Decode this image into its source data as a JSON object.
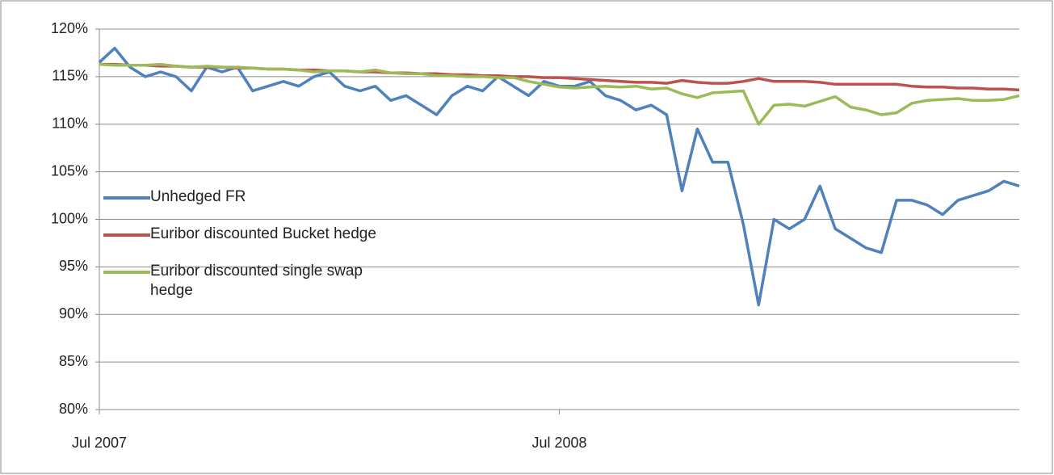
{
  "chart_data": {
    "type": "line",
    "categories": [
      "Jul 2007",
      null,
      null,
      null,
      null,
      null,
      null,
      null,
      null,
      null,
      null,
      null,
      null,
      null,
      null,
      null,
      null,
      null,
      null,
      null,
      null,
      null,
      null,
      null,
      null,
      null,
      null,
      null,
      null,
      null,
      "Jul 2008",
      null,
      null,
      null,
      null,
      null,
      null,
      null,
      null,
      null,
      null,
      null,
      null,
      null,
      null,
      null,
      null,
      null,
      null,
      null,
      null,
      null,
      null,
      null,
      null,
      null,
      null,
      null,
      null,
      null,
      null
    ],
    "series": [
      {
        "name": "Unhedged FR",
        "color": "#4f81bd",
        "values": [
          116.5,
          118,
          116,
          115,
          115.5,
          115,
          113.5,
          116,
          115.5,
          116,
          113.5,
          114,
          114.5,
          114,
          115,
          115.5,
          114,
          113.5,
          114,
          112.5,
          113,
          112,
          111,
          113,
          114,
          113.5,
          115,
          114,
          113,
          114.5,
          114,
          114,
          114.5,
          113,
          112.5,
          111.5,
          112,
          111,
          103,
          109.5,
          106,
          106,
          99.5,
          91,
          100,
          99,
          100,
          103.5,
          99,
          98,
          97,
          96.5,
          102,
          102,
          101.5,
          100.5,
          102,
          102.5,
          103,
          104,
          103.5
        ]
      },
      {
        "name": "Euribor discounted Bucket hedge",
        "color": "#c0504d",
        "values": [
          116.3,
          116.3,
          116.2,
          116.2,
          116.1,
          116.1,
          116.0,
          116.0,
          116.0,
          115.9,
          115.9,
          115.8,
          115.8,
          115.7,
          115.7,
          115.6,
          115.6,
          115.5,
          115.5,
          115.4,
          115.4,
          115.3,
          115.3,
          115.2,
          115.2,
          115.1,
          115.1,
          115.0,
          115.0,
          114.9,
          114.9,
          114.8,
          114.7,
          114.6,
          114.5,
          114.4,
          114.4,
          114.3,
          114.6,
          114.4,
          114.3,
          114.3,
          114.5,
          114.8,
          114.5,
          114.5,
          114.5,
          114.4,
          114.2,
          114.2,
          114.2,
          114.2,
          114.2,
          114.0,
          113.9,
          113.9,
          113.8,
          113.8,
          113.7,
          113.7,
          113.6
        ]
      },
      {
        "name": "Euribor discounted single swap hedge",
        "color": "#9bbb59",
        "values": [
          116.3,
          116.2,
          116.2,
          116.2,
          116.3,
          116.1,
          116.0,
          116.1,
          116.0,
          116.0,
          115.9,
          115.8,
          115.8,
          115.7,
          115.5,
          115.6,
          115.6,
          115.5,
          115.7,
          115.4,
          115.3,
          115.3,
          115.1,
          115.1,
          115.0,
          115.0,
          114.9,
          114.9,
          114.5,
          114.2,
          113.9,
          113.8,
          113.9,
          114.0,
          113.9,
          114.0,
          113.7,
          113.8,
          113.2,
          112.8,
          113.3,
          113.4,
          113.5,
          110.0,
          112.0,
          112.1,
          111.9,
          112.4,
          112.9,
          111.8,
          111.5,
          111.0,
          111.2,
          112.2,
          112.5,
          112.6,
          112.7,
          112.5,
          112.5,
          112.6,
          113.0
        ]
      }
    ],
    "ylim": [
      80,
      120
    ],
    "yticks": [
      {
        "value": 80,
        "label": "80%"
      },
      {
        "value": 85,
        "label": "85%"
      },
      {
        "value": 90,
        "label": "90%"
      },
      {
        "value": 95,
        "label": "95%"
      },
      {
        "value": 100,
        "label": "100%"
      },
      {
        "value": 105,
        "label": "105%"
      },
      {
        "value": 110,
        "label": "110%"
      },
      {
        "value": 115,
        "label": "115%"
      },
      {
        "value": 120,
        "label": "120%"
      }
    ],
    "grid": true,
    "legend": "left"
  }
}
